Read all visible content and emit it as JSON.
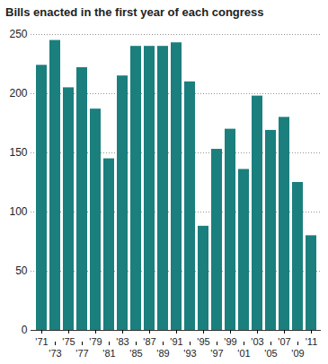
{
  "chart_data": {
    "type": "bar",
    "title": "Bills enacted in the first year of each congress",
    "categories": [
      "'71",
      "'73",
      "'75",
      "'77",
      "'79",
      "'81",
      "'83",
      "'85",
      "'87",
      "'89",
      "'91",
      "'93",
      "'95",
      "'97",
      "'99",
      "'01",
      "'03",
      "'05",
      "'07",
      "'09",
      "'11"
    ],
    "values": [
      224,
      245,
      205,
      222,
      187,
      145,
      215,
      240,
      240,
      240,
      243,
      210,
      88,
      153,
      170,
      136,
      198,
      169,
      180,
      125,
      80
    ],
    "color": "#1b7f7d",
    "ylim": [
      0,
      250
    ],
    "yticks": [
      0,
      50,
      100,
      150,
      200,
      250
    ],
    "grid": true
  }
}
